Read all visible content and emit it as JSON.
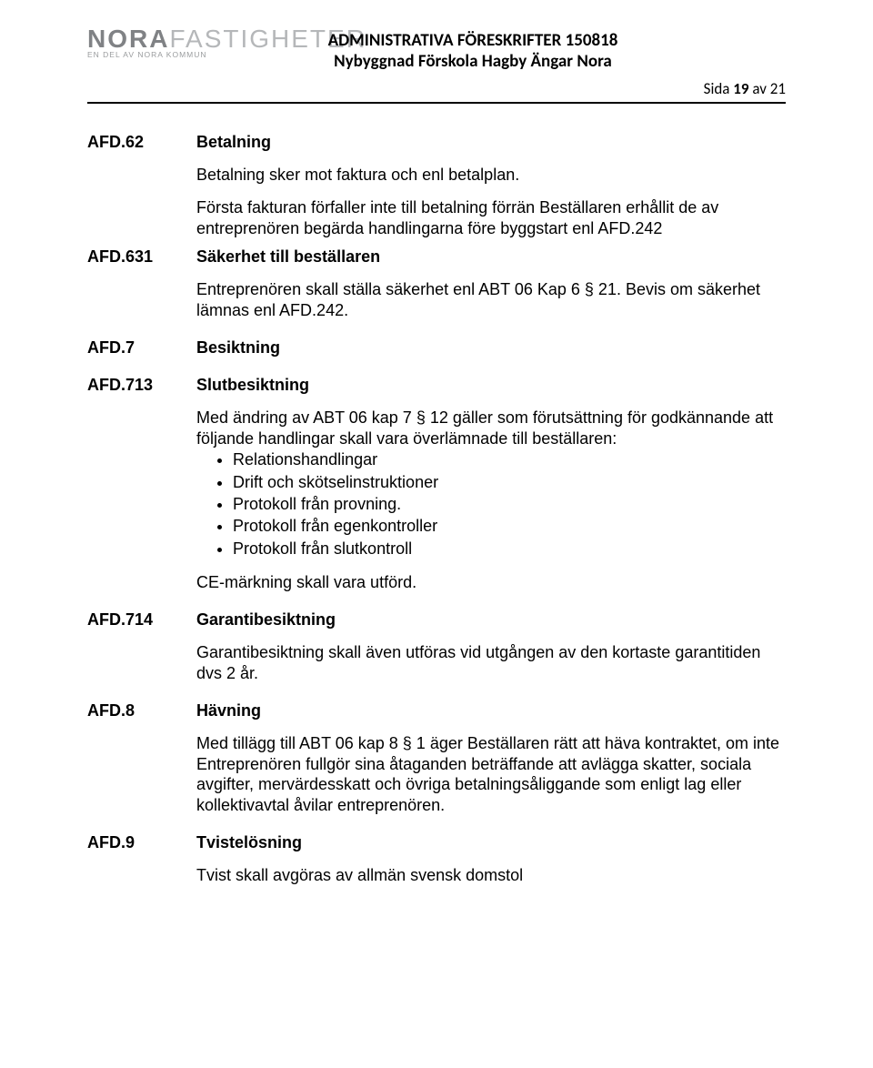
{
  "logo": {
    "name_strong": "NORA",
    "name_light": "FASTIGHETER",
    "subline": "EN DEL AV NORA KOMMUN"
  },
  "header": {
    "line1": "ADMINISTRATIVA FÖRESKRIFTER 150818",
    "line2": "Nybyggnad Förskola Hagby Ängar Nora"
  },
  "page_label": {
    "prefix": "Sida ",
    "num": "19",
    "of_text": " av 21"
  },
  "afd62": {
    "code": "AFD.62",
    "label": "Betalning",
    "p1": "Betalning sker mot faktura och enl  betalplan.",
    "p2": "Första fakturan förfaller inte till betalning förrän Beställaren erhållit de av entreprenören begärda handlingarna före byggstart enl AFD.242"
  },
  "afd631": {
    "code": "AFD.631",
    "label": "Säkerhet till beställaren",
    "p1": "Entreprenören skall ställa säkerhet enl ABT 06 Kap 6 § 21. Bevis om säkerhet lämnas enl AFD.242."
  },
  "afd7": {
    "code": "AFD.7",
    "label": "Besiktning"
  },
  "afd713": {
    "code": "AFD.713",
    "label": "Slutbesiktning",
    "p1": "Med ändring av ABT 06 kap 7 § 12 gäller som förutsättning för godkännande att följande handlingar skall vara överlämnade till beställaren:",
    "bullets": [
      "Relationshandlingar",
      "Drift och skötselinstruktioner",
      "Protokoll från provning.",
      "Protokoll från egenkontroller",
      "Protokoll från slutkontroll"
    ],
    "p2": "CE-märkning skall vara utförd."
  },
  "afd714": {
    "code": "AFD.714",
    "label": "Garantibesiktning",
    "p1": "Garantibesiktning skall även utföras vid utgången av den kortaste garantitiden dvs 2 år."
  },
  "afd8": {
    "code": "AFD.8",
    "label": "Hävning",
    "p1": "Med tillägg till ABT 06 kap 8 § 1 äger Beställaren rätt att häva kontraktet, om inte Entreprenören fullgör sina åtaganden beträffande att avlägga skatter, sociala avgifter, mervärdesskatt och övriga betalningsåliggande som enligt lag eller kollektivavtal åvilar entreprenören."
  },
  "afd9": {
    "code": "AFD.9",
    "label": "Tvistelösning",
    "p1": "Tvist skall avgöras av allmän svensk domstol"
  }
}
